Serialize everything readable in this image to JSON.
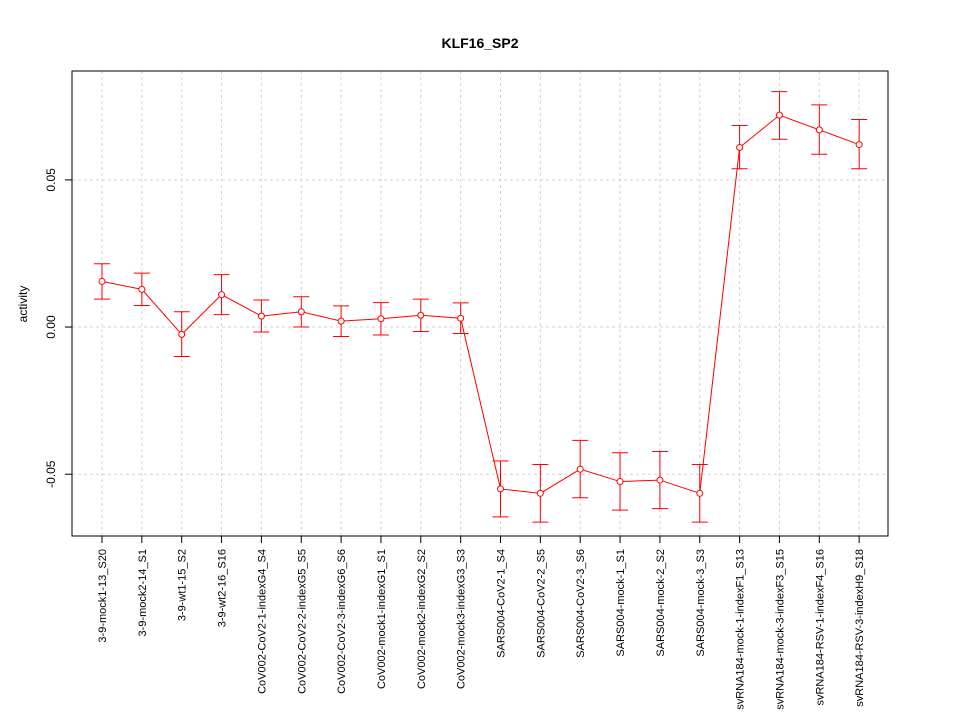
{
  "chart_data": {
    "type": "line",
    "title": "KLF16_SP2",
    "xlabel": "",
    "ylabel": "activity",
    "ylim": [
      -0.071,
      0.087
    ],
    "yticks": [
      -0.05,
      0.0,
      0.05
    ],
    "ytick_labels": [
      "-0.05",
      "0.00",
      "0.05"
    ],
    "grid": true,
    "colors": {
      "series": "#ff0000",
      "grid": "#d3d3d3",
      "frame": "#000000"
    },
    "categories": [
      "3-9-mock1-13_S20",
      "3-9-mock2-14_S1",
      "3-9-wt1-15_S2",
      "3-9-wt2-16_S16",
      "CoV002-CoV2-1-indexG4_S4",
      "CoV002-CoV2-2-indexG5_S5",
      "CoV002-CoV2-3-indexG6_S6",
      "CoV002-mock1-indexG1_S1",
      "CoV002-mock2-indexG2_S2",
      "CoV002-mock3-indexG3_S3",
      "SARS004-CoV2-1_S4",
      "SARS004-CoV2-2_S5",
      "SARS004-CoV2-3_S6",
      "SARS004-mock-1_S1",
      "SARS004-mock-2_S2",
      "SARS004-mock-3_S3",
      "svRNA184-mock-1-indexF1_S13",
      "svRNA184-mock-3-indexF3_S15",
      "svRNA184-RSV-1-indexF4_S16",
      "svRNA184-RSV-3-indexH9_S18"
    ],
    "series": [
      {
        "values": [
          0.0155,
          0.0128,
          -0.0025,
          0.011,
          0.0037,
          0.0052,
          0.002,
          0.0028,
          0.004,
          0.003,
          -0.055,
          -0.0565,
          -0.0483,
          -0.0525,
          -0.052,
          -0.0565,
          0.061,
          0.072,
          0.067,
          0.062
        ],
        "upper": [
          0.0215,
          0.0183,
          0.0052,
          0.0178,
          0.0092,
          0.0103,
          0.0072,
          0.0083,
          0.0095,
          0.0082,
          -0.0455,
          -0.0467,
          -0.0385,
          -0.0427,
          -0.0423,
          -0.0467,
          0.0685,
          0.08,
          0.0755,
          0.0705
        ],
        "lower": [
          0.0095,
          0.0073,
          -0.01,
          0.0042,
          -0.0017,
          0.0,
          -0.0032,
          -0.0027,
          -0.0015,
          -0.0022,
          -0.0645,
          -0.0663,
          -0.058,
          -0.0622,
          -0.0617,
          -0.0663,
          0.0538,
          0.0638,
          0.0587,
          0.0538
        ]
      }
    ]
  }
}
